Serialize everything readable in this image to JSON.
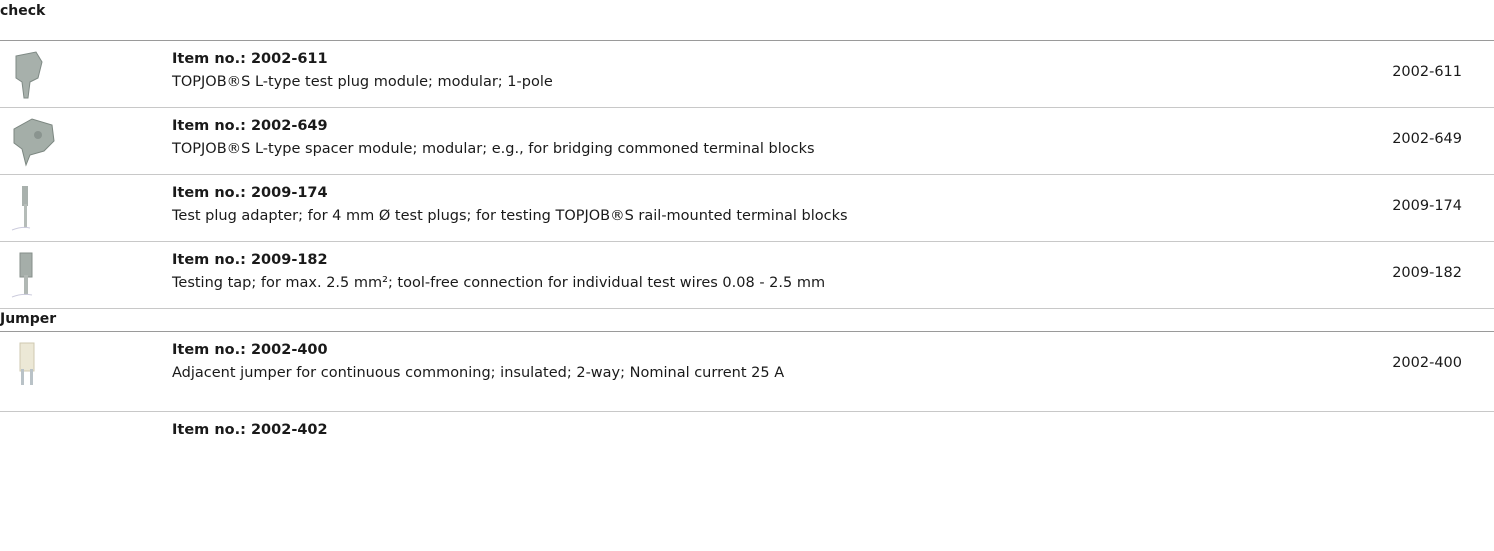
{
  "sections": [
    {
      "title": "check",
      "items": [
        {
          "item_no": "Item no.: 2002-611",
          "description": "TOPJOB®S L-type test plug module; modular; 1-pole",
          "code": "2002-611"
        },
        {
          "item_no": "Item no.: 2002-649",
          "description": "TOPJOB®S L-type spacer module; modular; e.g., for bridging commoned terminal blocks",
          "code": "2002-649"
        },
        {
          "item_no": "Item no.: 2009-174",
          "description": "Test plug adapter; for 4 mm Ø test plugs; for testing TOPJOB®S rail-mounted terminal blocks",
          "code": "2009-174"
        },
        {
          "item_no": "Item no.: 2009-182",
          "description": "Testing tap; for max. 2.5 mm²; tool-free connection for individual test wires 0.08 - 2.5 mm",
          "code": "2009-182"
        }
      ]
    },
    {
      "title": "Jumper",
      "items": [
        {
          "item_no": "Item no.: 2002-400",
          "description": "Adjacent jumper for continuous commoning; insulated; 2-way; Nominal current 25 A",
          "code": "2002-400"
        },
        {
          "item_no": "Item no.: 2002-402"
        }
      ]
    }
  ]
}
